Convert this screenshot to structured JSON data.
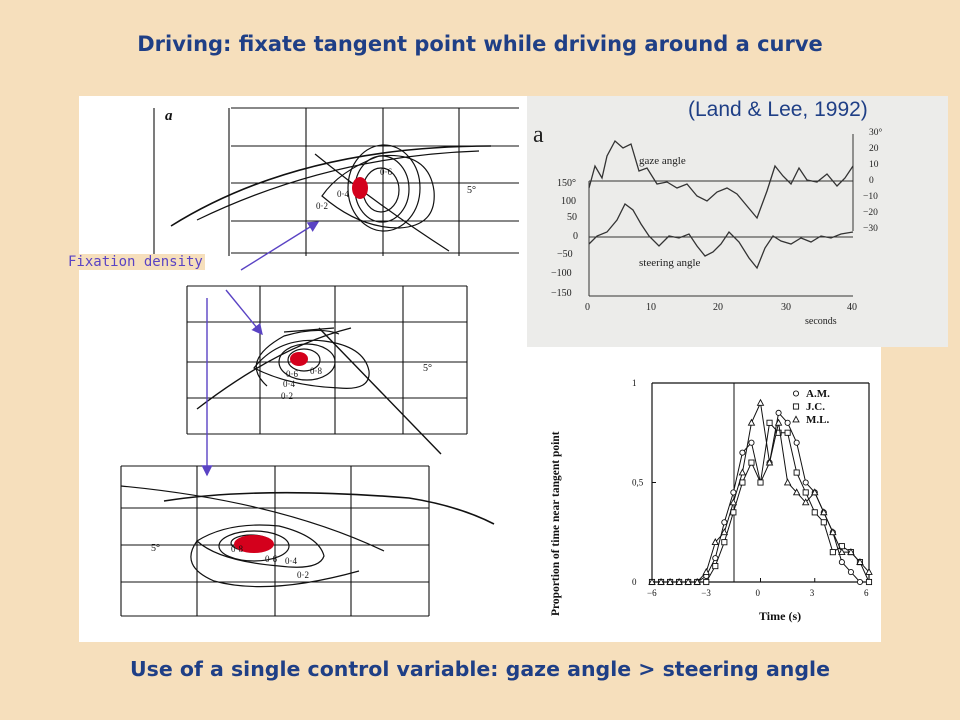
{
  "slide": {
    "title": "Driving: fixate tangent point while driving around a curve",
    "citation": "(Land & Lee, 1992)",
    "annotation": "Fixation density",
    "footer": "Use of a single control variable: gaze angle > steering angle"
  },
  "left_figure": {
    "panel_label": "a",
    "angle_marker": "5°",
    "contour_labels": [
      "0·2",
      "0·4",
      "0·6",
      "0·8"
    ]
  },
  "top_right_figure": {
    "panel_label": "a",
    "trace_labels": [
      "gaze angle",
      "steering angle"
    ],
    "left_axis_ticks": [
      "150°",
      "100",
      "50",
      "0",
      "−50",
      "−100",
      "−150"
    ],
    "right_axis_ticks": [
      "30°",
      "20",
      "10",
      "0",
      "−10",
      "−20",
      "−30"
    ],
    "x_ticks": [
      "0",
      "10",
      "20",
      "30",
      "40"
    ],
    "x_label": "seconds"
  },
  "chart_data": {
    "type": "line",
    "xlabel": "Time (s)",
    "ylabel": "Proportion of time near tangent point",
    "x": [
      -6,
      -5.5,
      -5,
      -4.5,
      -4,
      -3.5,
      -3,
      -2.5,
      -2,
      -1.5,
      -1,
      -0.5,
      0,
      0.5,
      1,
      1.5,
      2,
      2.5,
      3,
      3.5,
      4,
      4.5,
      5,
      5.5,
      6
    ],
    "xlim": [
      -6,
      6
    ],
    "ylim": [
      0,
      1
    ],
    "x_ticks": [
      "−6",
      "−3",
      "0",
      "3",
      "6"
    ],
    "y_ticks": [
      "0",
      "0,5",
      "1"
    ],
    "series": [
      {
        "name": "A.M.",
        "marker": "circle",
        "values": [
          0,
          0,
          0,
          0,
          0,
          0,
          0.03,
          0.12,
          0.3,
          0.45,
          0.65,
          0.7,
          0.5,
          0.6,
          0.85,
          0.8,
          0.7,
          0.5,
          0.45,
          0.35,
          0.25,
          0.1,
          0.05,
          0,
          0
        ]
      },
      {
        "name": "J.C.",
        "marker": "square",
        "values": [
          0,
          0,
          0,
          0,
          0,
          0,
          0,
          0.08,
          0.2,
          0.35,
          0.5,
          0.6,
          0.5,
          0.8,
          0.75,
          0.75,
          0.55,
          0.45,
          0.35,
          0.3,
          0.15,
          0.18,
          0.15,
          0.1,
          0
        ]
      },
      {
        "name": "M.L.",
        "marker": "triangle",
        "values": [
          0,
          0,
          0,
          0,
          0,
          0,
          0.05,
          0.2,
          0.25,
          0.4,
          0.55,
          0.8,
          0.9,
          0.6,
          0.8,
          0.5,
          0.45,
          0.4,
          0.45,
          0.35,
          0.25,
          0.15,
          0.15,
          0.1,
          0.05
        ]
      }
    ]
  }
}
